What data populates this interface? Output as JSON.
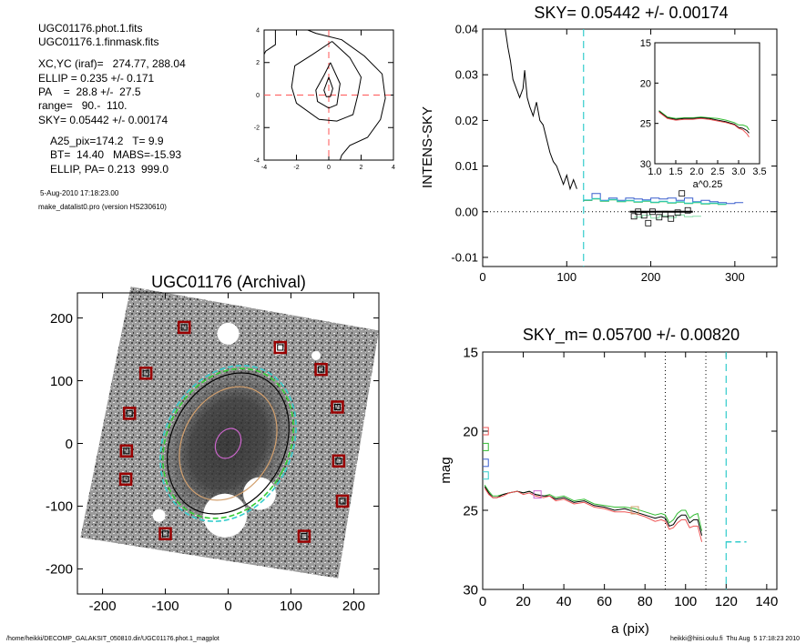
{
  "info": {
    "lines_a": [
      "UGC01176.phot.1.fits",
      "UGC01176.1.finmask.fits"
    ],
    "lines_b": [
      "XC,YC (iraf)=   274.77, 288.04",
      "ELLIP = 0.235 +/- 0.171",
      "PA    =  28.8 +/-  27.5",
      "range=   90.-  110.",
      "SKY= 0.05442 +/- 0.00174"
    ],
    "lines_c": [
      "A25_pix=174.2   T= 9.9",
      "BT=  14.40   MABS=-15.93",
      "ELLIP, PA= 0.213  999.0"
    ],
    "timestamp": "5-Aug-2010 17:18:23.00",
    "program": "make_datalist0.pro (version HS230610)"
  },
  "footer": {
    "path": "/home/heikki/DECOMP_GALAKSIT_050810.dir/UGC01176.phot.1_magplot",
    "user": "heikki@hiisi.oulu.fi  Thu Aug  5 17:18:23 2010"
  },
  "chart_data": [
    {
      "id": "contour",
      "type": "line",
      "title": "",
      "xlim": [
        -4,
        4
      ],
      "ylim": [
        -4,
        4
      ],
      "xticks": [
        -4,
        -2,
        0,
        2,
        4
      ],
      "yticks": [
        -4,
        -2,
        0,
        2,
        4
      ],
      "contours": [
        [
          [
            0,
            1.1
          ],
          [
            0.25,
            0.4
          ],
          [
            0.1,
            -0.1
          ],
          [
            -0.15,
            -0.1
          ],
          [
            -0.3,
            0.3
          ],
          [
            0,
            1.1
          ]
        ],
        [
          [
            0.1,
            2
          ],
          [
            0.7,
            0.7
          ],
          [
            0.5,
            -0.6
          ],
          [
            0,
            -0.8
          ],
          [
            -0.7,
            -0.4
          ],
          [
            -0.8,
            0.3
          ],
          [
            -0.3,
            1.2
          ],
          [
            0.1,
            2
          ]
        ],
        [
          [
            0.2,
            3.3
          ],
          [
            1.3,
            2.3
          ],
          [
            2,
            1.1
          ],
          [
            1.8,
            0
          ],
          [
            1.5,
            -1.2
          ],
          [
            0.5,
            -1.6
          ],
          [
            -0.6,
            -1.5
          ],
          [
            -2,
            -0.5
          ],
          [
            -2.3,
            0.5
          ],
          [
            -2.1,
            1.8
          ],
          [
            -1,
            2.5
          ],
          [
            0.2,
            3.3
          ]
        ],
        [
          [
            -1.3,
            4
          ],
          [
            -0.8,
            3.8
          ],
          [
            0.8,
            3.4
          ],
          [
            2.2,
            2.4
          ],
          [
            3.3,
            1.3
          ],
          [
            3.5,
            -0.2
          ],
          [
            3.2,
            -1.5
          ],
          [
            2.4,
            -2.6
          ],
          [
            1.3,
            -3.1
          ],
          [
            0.8,
            -3.7
          ],
          [
            0.7,
            -4
          ]
        ],
        [
          [
            -3.3,
            4
          ],
          [
            -3.3,
            3.1
          ],
          [
            -3.9,
            2.7
          ],
          [
            -4,
            2.5
          ]
        ]
      ],
      "crosshair": [
        0,
        0
      ],
      "colors": {
        "contour": "#000000",
        "crosshair": "#ff5555"
      }
    },
    {
      "id": "intens",
      "type": "line",
      "title": "SKY= 0.05442 +/- 0.00174",
      "ylabel": "INTENS-SKY",
      "xlim": [
        0,
        350
      ],
      "ylim": [
        -0.012,
        0.04
      ],
      "xticks": [
        0,
        100,
        200,
        300
      ],
      "yticks": [
        -0.01,
        0.0,
        0.01,
        0.02,
        0.03,
        0.04
      ],
      "ytick_labels": [
        "-0.01",
        "0.00",
        "0.01",
        "0.02",
        "0.03",
        "0.04"
      ],
      "series": [
        {
          "color": "#000000",
          "x": [
            26,
            30,
            33,
            36,
            40,
            44,
            48,
            50,
            53,
            56,
            60,
            64,
            68,
            72,
            76,
            80,
            84,
            88,
            92,
            96,
            100,
            104,
            108,
            112
          ],
          "y": [
            0.041,
            0.036,
            0.033,
            0.029,
            0.027,
            0.025,
            0.027,
            0.031,
            0.025,
            0.023,
            0.021,
            0.024,
            0.02,
            0.019,
            0.016,
            0.013,
            0.011,
            0.01,
            0.008,
            0.006,
            0.008,
            0.005,
            0.007,
            0.005
          ]
        },
        {
          "color": "#3a5fcd",
          "x": [
            120,
            130,
            140,
            150,
            160,
            170,
            180,
            190,
            200,
            210,
            220,
            230,
            240,
            250,
            260,
            270,
            280,
            290,
            300
          ],
          "y": [
            0.0025,
            0.004,
            0.0025,
            0.003,
            0.0025,
            0.003,
            0.0028,
            0.0026,
            0.003,
            0.0028,
            0.003,
            0.0025,
            0.003,
            0.0022,
            0.0025,
            0.0022,
            0.002,
            0.0018,
            0.002
          ]
        },
        {
          "color": "#33bb33",
          "x": [
            120,
            130,
            140,
            150,
            160,
            170,
            180,
            190,
            200,
            210,
            220,
            230,
            240,
            250,
            260,
            270,
            280
          ],
          "y": [
            0.0025,
            0.0028,
            0.0023,
            0.0026,
            0.0022,
            0.0024,
            0.0021,
            0.0023,
            0.002,
            0.0022,
            0.0019,
            0.0021,
            0.0018,
            0.002,
            0.0017,
            0.0018,
            0.0016
          ]
        },
        {
          "color": "#33cccc",
          "x": [
            120,
            130,
            140,
            150,
            160,
            170,
            180,
            190,
            200,
            210,
            220,
            230,
            240,
            250,
            260,
            270,
            280
          ],
          "y": [
            0.0026,
            0.0029,
            0.0024,
            0.0027,
            0.0023,
            0.0025,
            0.0022,
            0.0024,
            0.0021,
            0.0023,
            0.002,
            0.0022,
            0.0019,
            0.0021,
            0.0018,
            0.0019,
            0.0017
          ]
        },
        {
          "color": "#88ddaa",
          "x": [
            180,
            190,
            200,
            210,
            220,
            230,
            240,
            250
          ],
          "y": [
            -0.0012,
            -0.0008,
            -0.0014,
            -0.0009,
            -0.0013,
            -0.0007,
            -0.0011,
            -0.001
          ]
        }
      ],
      "squares": {
        "x": [
          180,
          185,
          192,
          197,
          202,
          210,
          217,
          224,
          232,
          237,
          244
        ],
        "y": [
          -0.001,
          0.0,
          -0.0008,
          -0.0025,
          0.0,
          -0.0012,
          -0.0005,
          -0.0015,
          -0.0002,
          0.004,
          0.0003
        ]
      },
      "sky_level": {
        "x": [
          175,
          250
        ],
        "y": 0.0
      },
      "zero_line": 0.0,
      "vline": 120,
      "inset": {
        "xlim": [
          1.0,
          3.5
        ],
        "ylim": [
          15,
          30
        ],
        "xticks": [
          1.0,
          1.5,
          2.0,
          2.5,
          3.0,
          3.5
        ],
        "xtick_labels": [
          "1.0",
          "1.5",
          "2.0",
          "2.5",
          "3.0",
          "3.5"
        ],
        "yticks": [
          15,
          20,
          25,
          30
        ],
        "xlabel": "a^0.25",
        "series": [
          {
            "color": "#33bb33",
            "x": [
              1.1,
              1.3,
              1.5,
              1.7,
              1.9,
              2.1,
              2.3,
              2.5,
              2.7,
              2.9,
              3.0,
              3.1,
              3.2,
              3.25
            ],
            "y": [
              23.4,
              24.2,
              24.4,
              24.3,
              24.3,
              24.2,
              24.3,
              24.4,
              24.6,
              24.9,
              25.2,
              25.2,
              25.4,
              25.8
            ]
          },
          {
            "color": "#000000",
            "x": [
              1.1,
              1.3,
              1.5,
              1.7,
              1.9,
              2.1,
              2.3,
              2.5,
              2.7,
              2.9,
              3.0,
              3.1,
              3.2,
              3.25
            ],
            "y": [
              23.5,
              24.3,
              24.5,
              24.4,
              24.4,
              24.3,
              24.4,
              24.6,
              24.8,
              25.1,
              25.5,
              25.6,
              25.9,
              26.2
            ]
          },
          {
            "color": "#ee5555",
            "x": [
              1.1,
              1.3,
              1.5,
              1.7,
              1.9,
              2.1,
              2.3,
              2.5,
              2.7,
              2.9,
              3.0,
              3.1,
              3.2,
              3.25
            ],
            "y": [
              23.6,
              24.4,
              24.6,
              24.5,
              24.5,
              24.4,
              24.5,
              24.7,
              24.9,
              25.2,
              25.6,
              25.8,
              26.3,
              26.7
            ]
          }
        ]
      }
    },
    {
      "id": "image",
      "type": "scatter",
      "title": "UGC01176 (Archival)",
      "xlim": [
        -240,
        240
      ],
      "ylim": [
        -240,
        240
      ],
      "xticks": [
        -200,
        -100,
        0,
        100,
        200
      ],
      "yticks": [
        -200,
        -100,
        0,
        100,
        200
      ],
      "sky_boxes": [
        [
          -70,
          185
        ],
        [
          83,
          153
        ],
        [
          -131,
          112
        ],
        [
          148,
          118
        ],
        [
          -157,
          48
        ],
        [
          174,
          58
        ],
        [
          -162,
          -12
        ],
        [
          176,
          -28
        ],
        [
          -163,
          -57
        ],
        [
          182,
          -92
        ],
        [
          -100,
          -144
        ],
        [
          121,
          -148
        ]
      ],
      "ellipses": [
        {
          "color": "#cc66cc",
          "a": 25,
          "b": 19,
          "pa": 28
        },
        {
          "color": "#d2a06e",
          "a": 95,
          "b": 72,
          "pa": 28
        },
        {
          "color": "#000000",
          "a": 118,
          "b": 90,
          "pa": 28
        },
        {
          "color": "#33cc33",
          "a": 125,
          "b": 97,
          "pa": 28
        },
        {
          "color": "#33cccc",
          "a": 130,
          "b": 101,
          "pa": 28
        }
      ],
      "colors": {
        "box": "#990000",
        "image_dark": "#555555"
      }
    },
    {
      "id": "magprof",
      "type": "line",
      "title": "SKY_m=  0.05700 +/- 0.00820",
      "xlabel": "a (pix)",
      "ylabel": "mag",
      "xlim": [
        0,
        145
      ],
      "ylim": [
        15,
        30
      ],
      "xticks": [
        0,
        20,
        40,
        60,
        80,
        100,
        120,
        140
      ],
      "yticks": [
        15,
        20,
        25,
        30
      ],
      "series": [
        {
          "color": "#33bb33",
          "x": [
            1,
            3,
            5,
            7,
            10,
            13,
            17,
            20,
            23,
            26,
            30,
            33,
            36,
            40,
            45,
            50,
            55,
            60,
            65,
            70,
            75,
            80,
            85,
            88,
            90,
            92,
            94,
            96,
            98,
            100,
            102,
            104,
            106,
            108
          ],
          "y": [
            23.4,
            23.8,
            24.1,
            24.1,
            24.0,
            23.9,
            23.8,
            23.9,
            23.8,
            24.0,
            24.1,
            24.0,
            24.2,
            24.1,
            24.4,
            24.3,
            24.6,
            24.7,
            24.8,
            24.8,
            24.9,
            25.1,
            25.3,
            25.2,
            25.3,
            25.8,
            25.6,
            25.2,
            25.0,
            25.0,
            25.5,
            25.3,
            25.2,
            26.3
          ]
        },
        {
          "color": "#000000",
          "x": [
            1,
            3,
            5,
            7,
            10,
            13,
            17,
            20,
            23,
            26,
            30,
            33,
            36,
            40,
            45,
            50,
            55,
            60,
            65,
            70,
            75,
            80,
            85,
            88,
            90,
            92,
            94,
            96,
            98,
            100,
            102,
            104,
            106,
            108
          ],
          "y": [
            23.5,
            23.9,
            24.2,
            24.2,
            24.0,
            23.9,
            23.8,
            23.9,
            23.8,
            24.0,
            24.1,
            24.1,
            24.3,
            24.2,
            24.5,
            24.4,
            24.7,
            24.8,
            25.0,
            24.9,
            25.1,
            25.3,
            25.5,
            25.4,
            25.5,
            26.0,
            25.9,
            25.5,
            25.3,
            25.3,
            25.8,
            25.6,
            25.6,
            26.6
          ]
        },
        {
          "color": "#ee5555",
          "x": [
            1,
            3,
            5,
            7,
            10,
            13,
            17,
            20,
            23,
            26,
            30,
            33,
            36,
            40,
            45,
            50,
            55,
            60,
            65,
            70,
            75,
            80,
            85,
            88,
            90,
            92,
            94,
            96,
            98,
            100,
            102,
            104,
            106,
            108
          ],
          "y": [
            23.6,
            24.0,
            24.2,
            24.2,
            24.1,
            23.9,
            23.8,
            24.0,
            23.9,
            24.1,
            24.2,
            24.1,
            24.4,
            24.3,
            24.6,
            24.5,
            24.8,
            24.9,
            25.1,
            25.1,
            25.2,
            25.4,
            25.7,
            25.6,
            25.7,
            26.2,
            26.1,
            25.8,
            25.6,
            25.6,
            26.1,
            26.0,
            26.0,
            27.0
          ]
        }
      ],
      "markers": [
        {
          "x": 1,
          "y": 20.0,
          "color": "#ee5555"
        },
        {
          "x": 1,
          "y": 21.0,
          "color": "#33bb33"
        },
        {
          "x": 1,
          "y": 22.0,
          "color": "#3a5fcd"
        },
        {
          "x": 1,
          "y": 22.8,
          "color": "#33cccc"
        },
        {
          "x": 27,
          "y": 24.0,
          "color": "#cc66cc"
        },
        {
          "x": 75,
          "y": 25.0,
          "color": "#d2a06e"
        }
      ],
      "vlines_dotted": [
        90,
        110
      ],
      "vline_dashed": 120,
      "sky_mag": {
        "x": [
          120,
          130
        ],
        "y": 27.0
      }
    }
  ]
}
